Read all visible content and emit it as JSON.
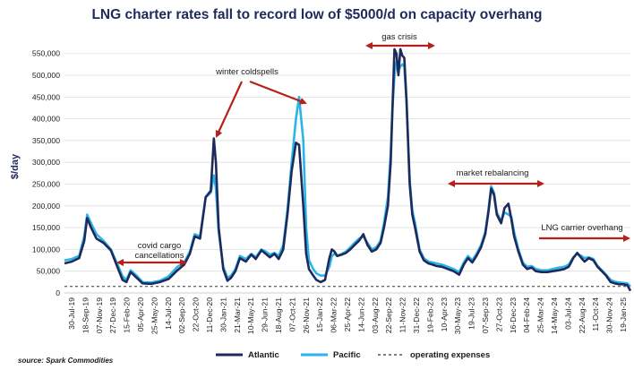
{
  "chart_data": {
    "type": "line",
    "title": "LNG charter rates fall to record low of $5000/d on capacity overhang",
    "xlabel": "",
    "ylabel": "$/day",
    "ylim": [
      0,
      570000
    ],
    "yticks": [
      0,
      50000,
      100000,
      150000,
      200000,
      250000,
      300000,
      350000,
      400000,
      450000,
      500000,
      550000
    ],
    "ytick_labels": [
      "0",
      "50,000",
      "100,000",
      "150,000",
      "200,000",
      "250,000",
      "300,000",
      "350,000",
      "400,000",
      "450,000",
      "500,000",
      "550,000"
    ],
    "x_start": "2019-07-30",
    "x_end": "2025-01-19",
    "xtick_labels": [
      "30-Jul-19",
      "18-Sep-19",
      "07-Nov-19",
      "27-Dec-19",
      "15-Feb-20",
      "05-Apr-20",
      "25-May-20",
      "14-Jul-20",
      "02-Sep-20",
      "22-Oct-20",
      "11-Dec-20",
      "30-Jan-21",
      "21-Mar-21",
      "10-May-21",
      "29-Jun-21",
      "18-Aug-21",
      "07-Oct-21",
      "26-Nov-21",
      "15-Jan-22",
      "06-Mar-22",
      "25-Apr-22",
      "14-Jun-22",
      "03-Aug-22",
      "22-Sep-22",
      "11-Nov-22",
      "31-Dec-22",
      "19-Feb-23",
      "10-Apr-23",
      "30-May-23",
      "19-Jul-23",
      "07-Sep-23",
      "27-Oct-23",
      "16-Dec-23",
      "04-Feb-24",
      "25-Mar-24",
      "14-May-24",
      "03-Jul-24",
      "22-Aug-24",
      "11-Oct-24",
      "30-Nov-24",
      "19-Jan-25"
    ],
    "series": [
      {
        "name": "Atlantic",
        "color": "#1f2a5c",
        "dates": [
          "2019-07-30",
          "2019-08-25",
          "2019-09-20",
          "2019-10-08",
          "2019-10-18",
          "2019-11-01",
          "2019-11-20",
          "2019-12-15",
          "2020-01-10",
          "2020-02-05",
          "2020-02-20",
          "2020-03-05",
          "2020-03-20",
          "2020-04-10",
          "2020-05-01",
          "2020-06-01",
          "2020-07-01",
          "2020-08-01",
          "2020-09-01",
          "2020-09-25",
          "2020-10-15",
          "2020-11-01",
          "2020-11-20",
          "2020-12-10",
          "2020-12-28",
          "2021-01-08",
          "2021-01-15",
          "2021-01-25",
          "2021-02-10",
          "2021-02-25",
          "2021-03-10",
          "2021-03-25",
          "2021-04-10",
          "2021-05-01",
          "2021-05-20",
          "2021-06-05",
          "2021-06-25",
          "2021-07-10",
          "2021-07-25",
          "2021-08-10",
          "2021-08-25",
          "2021-09-10",
          "2021-09-25",
          "2021-10-10",
          "2021-10-25",
          "2021-11-05",
          "2021-11-20",
          "2021-11-30",
          "2021-12-10",
          "2021-12-25",
          "2022-01-05",
          "2022-01-20",
          "2022-02-05",
          "2022-02-20",
          "2022-03-01",
          "2022-03-10",
          "2022-03-20",
          "2022-04-05",
          "2022-04-20",
          "2022-05-05",
          "2022-05-20",
          "2022-06-05",
          "2022-06-20",
          "2022-07-05",
          "2022-07-20",
          "2022-08-05",
          "2022-08-20",
          "2022-09-01",
          "2022-09-15",
          "2022-09-25",
          "2022-10-01",
          "2022-10-08",
          "2022-10-15",
          "2022-10-22",
          "2022-10-29",
          "2022-11-05",
          "2022-11-12",
          "2022-11-20",
          "2022-12-01",
          "2022-12-10",
          "2022-12-20",
          "2023-01-05",
          "2023-01-20",
          "2023-02-05",
          "2023-02-20",
          "2023-03-05",
          "2023-03-25",
          "2023-04-15",
          "2023-05-05",
          "2023-05-25",
          "2023-06-10",
          "2023-06-25",
          "2023-07-10",
          "2023-07-25",
          "2023-08-10",
          "2023-08-25",
          "2023-09-05",
          "2023-09-15",
          "2023-09-25",
          "2023-10-05",
          "2023-10-20",
          "2023-11-01",
          "2023-11-15",
          "2023-11-25",
          "2023-12-05",
          "2023-12-20",
          "2024-01-05",
          "2024-01-20",
          "2024-02-05",
          "2024-02-20",
          "2024-03-10",
          "2024-04-01",
          "2024-04-20",
          "2024-05-10",
          "2024-05-30",
          "2024-06-15",
          "2024-07-01",
          "2024-07-15",
          "2024-07-30",
          "2024-08-10",
          "2024-08-25",
          "2024-09-10",
          "2024-09-25",
          "2024-10-10",
          "2024-10-25",
          "2024-11-10",
          "2024-11-25",
          "2024-12-10",
          "2024-12-25",
          "2025-01-08",
          "2025-01-19"
        ],
        "values": [
          68000,
          72000,
          80000,
          120000,
          172000,
          150000,
          125000,
          115000,
          98000,
          55000,
          30000,
          25000,
          48000,
          35000,
          22000,
          21000,
          25000,
          32000,
          52000,
          65000,
          90000,
          130000,
          125000,
          220000,
          235000,
          355000,
          300000,
          150000,
          55000,
          28000,
          35000,
          50000,
          80000,
          72000,
          88000,
          78000,
          98000,
          90000,
          82000,
          90000,
          78000,
          100000,
          180000,
          280000,
          345000,
          340000,
          200000,
          90000,
          55000,
          40000,
          30000,
          25000,
          30000,
          80000,
          100000,
          95000,
          85000,
          88000,
          92000,
          100000,
          110000,
          120000,
          135000,
          110000,
          95000,
          100000,
          115000,
          150000,
          200000,
          300000,
          420000,
          560000,
          550000,
          500000,
          560000,
          545000,
          540000,
          440000,
          250000,
          180000,
          150000,
          95000,
          75000,
          68000,
          65000,
          62000,
          60000,
          55000,
          50000,
          42000,
          65000,
          80000,
          70000,
          85000,
          105000,
          135000,
          185000,
          240000,
          225000,
          180000,
          160000,
          195000,
          205000,
          170000,
          130000,
          95000,
          65000,
          55000,
          58000,
          50000,
          48000,
          48000,
          50000,
          52000,
          55000,
          60000,
          80000,
          92000,
          80000,
          72000,
          80000,
          75000,
          60000,
          50000,
          40000,
          25000,
          22000,
          20000,
          20000,
          18000,
          5000
        ]
      },
      {
        "name": "Pacific",
        "color": "#29b5e8",
        "dates": [
          "2019-07-30",
          "2019-08-25",
          "2019-09-20",
          "2019-10-08",
          "2019-10-18",
          "2019-11-01",
          "2019-11-20",
          "2019-12-15",
          "2020-01-10",
          "2020-02-05",
          "2020-02-20",
          "2020-03-05",
          "2020-03-20",
          "2020-04-10",
          "2020-05-01",
          "2020-06-01",
          "2020-07-01",
          "2020-08-01",
          "2020-09-01",
          "2020-09-25",
          "2020-10-15",
          "2020-11-01",
          "2020-11-20",
          "2020-12-10",
          "2020-12-28",
          "2021-01-08",
          "2021-01-15",
          "2021-01-25",
          "2021-02-10",
          "2021-02-25",
          "2021-03-10",
          "2021-03-25",
          "2021-04-10",
          "2021-05-01",
          "2021-05-20",
          "2021-06-05",
          "2021-06-25",
          "2021-07-10",
          "2021-07-25",
          "2021-08-10",
          "2021-08-25",
          "2021-09-10",
          "2021-09-25",
          "2021-10-10",
          "2021-10-25",
          "2021-11-05",
          "2021-11-20",
          "2021-11-30",
          "2021-12-10",
          "2021-12-25",
          "2022-01-05",
          "2022-01-20",
          "2022-02-05",
          "2022-02-20",
          "2022-03-01",
          "2022-03-10",
          "2022-03-20",
          "2022-04-05",
          "2022-04-20",
          "2022-05-05",
          "2022-05-20",
          "2022-06-05",
          "2022-06-20",
          "2022-07-05",
          "2022-07-20",
          "2022-08-05",
          "2022-08-20",
          "2022-09-01",
          "2022-09-15",
          "2022-09-25",
          "2022-10-01",
          "2022-10-08",
          "2022-10-15",
          "2022-10-22",
          "2022-10-29",
          "2022-11-05",
          "2022-11-12",
          "2022-11-20",
          "2022-12-01",
          "2022-12-10",
          "2022-12-20",
          "2023-01-05",
          "2023-01-20",
          "2023-02-05",
          "2023-02-20",
          "2023-03-05",
          "2023-03-25",
          "2023-04-15",
          "2023-05-05",
          "2023-05-25",
          "2023-06-10",
          "2023-06-25",
          "2023-07-10",
          "2023-07-25",
          "2023-08-10",
          "2023-08-25",
          "2023-09-05",
          "2023-09-15",
          "2023-09-25",
          "2023-10-05",
          "2023-10-20",
          "2023-11-01",
          "2023-11-15",
          "2023-11-25",
          "2023-12-05",
          "2023-12-20",
          "2024-01-05",
          "2024-01-20",
          "2024-02-05",
          "2024-02-20",
          "2024-03-10",
          "2024-04-01",
          "2024-04-20",
          "2024-05-10",
          "2024-05-30",
          "2024-06-15",
          "2024-07-01",
          "2024-07-15",
          "2024-07-30",
          "2024-08-10",
          "2024-08-25",
          "2024-09-10",
          "2024-09-25",
          "2024-10-10",
          "2024-10-25",
          "2024-11-10",
          "2024-11-25",
          "2024-12-10",
          "2024-12-25",
          "2025-01-08",
          "2025-01-19"
        ],
        "values": [
          75000,
          78000,
          85000,
          130000,
          180000,
          160000,
          135000,
          120000,
          100000,
          62000,
          38000,
          30000,
          52000,
          40000,
          25000,
          24000,
          28000,
          38000,
          60000,
          70000,
          95000,
          135000,
          130000,
          220000,
          230000,
          270000,
          240000,
          140000,
          60000,
          35000,
          40000,
          55000,
          85000,
          78000,
          90000,
          82000,
          100000,
          95000,
          88000,
          92000,
          85000,
          110000,
          190000,
          300000,
          400000,
          450000,
          350000,
          150000,
          75000,
          55000,
          45000,
          40000,
          40000,
          60000,
          85000,
          90000,
          85000,
          90000,
          95000,
          105000,
          115000,
          125000,
          130000,
          115000,
          100000,
          105000,
          120000,
          160000,
          220000,
          320000,
          420000,
          500000,
          530000,
          510000,
          520000,
          525000,
          520000,
          440000,
          260000,
          190000,
          160000,
          100000,
          80000,
          72000,
          70000,
          68000,
          65000,
          60000,
          55000,
          48000,
          70000,
          85000,
          75000,
          90000,
          110000,
          140000,
          190000,
          245000,
          230000,
          185000,
          165000,
          185000,
          180000,
          175000,
          140000,
          100000,
          70000,
          60000,
          62000,
          55000,
          52000,
          52000,
          55000,
          58000,
          60000,
          65000,
          82000,
          90000,
          85000,
          80000,
          82000,
          78000,
          62000,
          52000,
          42000,
          30000,
          26000,
          24000,
          23000,
          22000,
          15000
        ]
      },
      {
        "name": "operating expenses",
        "color": "#333333",
        "style": "dashed",
        "dates": [
          "2019-07-30",
          "2025-01-19"
        ],
        "values": [
          15000,
          15000
        ]
      }
    ],
    "annotations": [
      {
        "text": "winter coldspells",
        "type": "arrows"
      },
      {
        "text": "gas crisis",
        "type": "double-arrow"
      },
      {
        "text": "covid cargo cancellations",
        "type": "double-arrow"
      },
      {
        "text": "market rebalancing",
        "type": "double-arrow"
      },
      {
        "text": "LNG carrier overhang",
        "type": "arrow"
      }
    ],
    "legend_position": "bottom",
    "grid": true
  },
  "annotations": {
    "winter": "winter coldspells",
    "gas": "gas crisis",
    "covid_line1": "covid cargo",
    "covid_line2": "cancellations",
    "rebalancing": "market rebalancing",
    "overhang": "LNG carrier overhang"
  },
  "legend": {
    "atlantic": "Atlantic",
    "pacific": "Pacific",
    "opex": "operating expenses"
  },
  "source": "source: Spark Commodities",
  "colors": {
    "atlantic": "#1f2a5c",
    "pacific": "#29b5e8",
    "arrow": "#b5211a",
    "opex": "#333333"
  }
}
